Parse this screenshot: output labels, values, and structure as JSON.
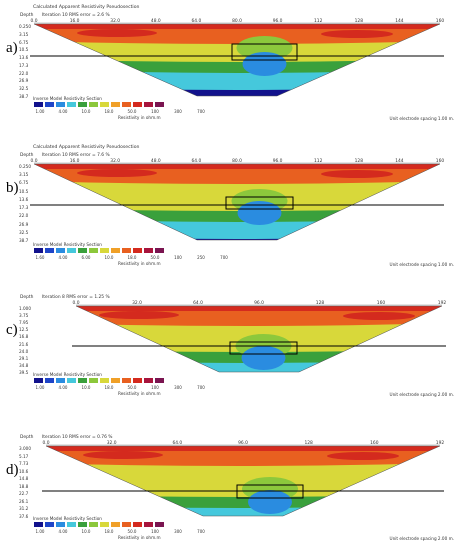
{
  "panels": [
    {
      "label": "a)",
      "title": "Calculated Apparent Resistivity Pseudosection",
      "depth_header": "Depth",
      "iteration": "Iteration 10 RMS error = 2.6 %",
      "x_ticks": [
        "0.0",
        "16.0",
        "32.0",
        "48.0",
        "64.0",
        "80.0",
        "96.0",
        "112",
        "128",
        "144",
        "160"
      ],
      "depths": [
        "0.250",
        "3.15",
        "6.75",
        "10.5",
        "13.6",
        "17.3",
        "22.0",
        "26.9",
        "32.5",
        "38.7"
      ],
      "legend_title": "Inverse Model Resistivity Section",
      "scale_values": [
        "1.00",
        "4.00",
        "10.0",
        "18.0",
        "50.0",
        "100",
        "300",
        "700"
      ],
      "unit_label": "Resistivity in ohm.m",
      "spacing": "Unit electrode spacing 1.00 m."
    },
    {
      "label": "b)",
      "title": "Calculated Apparent Resistivity Pseudosection",
      "depth_header": "Depth",
      "iteration": "Iteration 10 RMS error = 7.6 %",
      "x_ticks": [
        "0.0",
        "16.0",
        "32.0",
        "48.0",
        "64.0",
        "80.0",
        "96.0",
        "112",
        "128",
        "144",
        "160"
      ],
      "depths": [
        "0.250",
        "3.15",
        "6.75",
        "10.5",
        "13.6",
        "17.3",
        "22.0",
        "26.9",
        "32.5",
        "38.7"
      ],
      "legend_title": "Inverse Model Resistivity Section",
      "scale_values": [
        "1.60",
        "4.00",
        "6.00",
        "10.0",
        "18.0",
        "50.0",
        "100",
        "250",
        "700"
      ],
      "unit_label": "Resistivity in ohm.m",
      "spacing": "Unit electrode spacing 1.00 m."
    },
    {
      "label": "c)",
      "title": "",
      "depth_header": "Depth",
      "iteration": "Iteration 8 RMS error = 1.25 %",
      "x_ticks": [
        "0.0",
        "32.0",
        "64.0",
        "96.0",
        "128",
        "160",
        "192"
      ],
      "depths": [
        "1.000",
        "3.75",
        "7.95",
        "12.5",
        "16.8",
        "21.6",
        "24.0",
        "29.1",
        "34.8",
        "39.5"
      ],
      "legend_title": "Inverse Model Resistivity Section",
      "scale_values": [
        "1.00",
        "4.00",
        "10.0",
        "18.0",
        "50.0",
        "100",
        "300",
        "700"
      ],
      "unit_label": "Resistivity in ohm.m",
      "spacing": "Unit electrode spacing 2.00 m."
    },
    {
      "label": "d)",
      "title": "",
      "depth_header": "Depth",
      "iteration": "Iteration 10 RMS error = 0.76 %",
      "x_ticks": [
        "0.0",
        "32.0",
        "64.0",
        "96.0",
        "128",
        "160",
        "192"
      ],
      "depths": [
        "3.000",
        "5.17",
        "7.73",
        "10.6",
        "14.8",
        "18.8",
        "22.7",
        "26.1",
        "31.2",
        "37.6"
      ],
      "legend_title": "Inverse Model Resistivity Section",
      "scale_values": [
        "1.00",
        "4.00",
        "10.0",
        "18.0",
        "50.0",
        "100",
        "300",
        "700"
      ],
      "unit_label": "Resistivity in ohm.m",
      "spacing": "Unit electrode spacing 2.00 m."
    }
  ],
  "palette": [
    "#12128c",
    "#1f45c8",
    "#2a8ce0",
    "#45c8dc",
    "#3aa03c",
    "#8cc83c",
    "#d8d83a",
    "#f0a028",
    "#e86020",
    "#d42a1e",
    "#a8143c",
    "#7a1450"
  ]
}
